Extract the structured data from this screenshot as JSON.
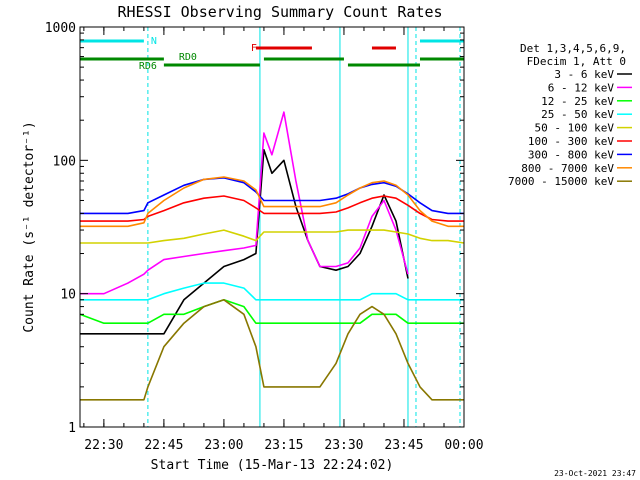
{
  "chart_data": {
    "type": "line",
    "title": "RHESSI Observing Summary Count Rates",
    "xlabel": "Start Time (15-Mar-13 22:24:02)",
    "ylabel": "Count Rate (s⁻¹ detector⁻¹)",
    "y_scale": "log",
    "ylim": [
      1,
      1000
    ],
    "xlim": [
      "22:24:02",
      "00:00:00"
    ],
    "x_ticks": [
      "22:30",
      "22:45",
      "23:00",
      "23:15",
      "23:30",
      "23:45",
      "00:00"
    ],
    "y_ticks": [
      "1",
      "10",
      "100",
      "1000"
    ],
    "timestamp": "23-Oct-2021 23:47",
    "legend": {
      "placement": "right",
      "header": [
        "Det 1,3,4,5,6,9,",
        "FDecim 1, Att 0"
      ]
    },
    "flags": [
      {
        "label": "N",
        "color": "#00e5e5",
        "segments": [
          [
            "22:24",
            "22:40"
          ],
          [
            "23:49",
            "00:00"
          ]
        ]
      },
      {
        "label": "F",
        "color": "#e00000",
        "segments": [
          [
            "23:08",
            "23:22"
          ],
          [
            "23:37",
            "23:43"
          ]
        ]
      },
      {
        "label": "RD0",
        "color": "#008800",
        "segments": [
          [
            "22:24",
            "22:45"
          ],
          [
            "23:10",
            "23:30"
          ],
          [
            "23:49",
            "00:00"
          ]
        ]
      },
      {
        "label": "RD6",
        "color": "#008800",
        "segments": [
          [
            "22:45",
            "23:09"
          ],
          [
            "23:31",
            "23:49"
          ]
        ]
      }
    ],
    "markers": {
      "solid": [
        "23:09",
        "23:29",
        "23:46"
      ],
      "dashed": [
        "22:41",
        "23:48",
        "23:59"
      ]
    },
    "x": [
      "22:24",
      "22:30",
      "22:36",
      "22:40",
      "22:41",
      "22:45",
      "22:50",
      "22:55",
      "23:00",
      "23:05",
      "23:08",
      "23:10",
      "23:12",
      "23:15",
      "23:18",
      "23:21",
      "23:24",
      "23:28",
      "23:31",
      "23:34",
      "23:37",
      "23:40",
      "23:43",
      "23:46",
      "23:49",
      "23:52",
      "23:56",
      "00:00"
    ],
    "series": [
      {
        "name": "3 - 6 keV",
        "color": "#000000",
        "values": [
          5,
          5,
          5,
          5,
          5,
          5,
          9,
          12,
          16,
          18,
          20,
          120,
          80,
          100,
          45,
          25,
          16,
          15,
          16,
          20,
          32,
          55,
          35,
          13,
          null,
          null,
          null,
          null
        ]
      },
      {
        "name": "6 - 12 keV",
        "color": "#ff00ff",
        "values": [
          10,
          10,
          12,
          14,
          15,
          18,
          19,
          20,
          21,
          22,
          23,
          160,
          110,
          230,
          70,
          25,
          16,
          16,
          17,
          22,
          38,
          50,
          30,
          14,
          null,
          null,
          null,
          null
        ]
      },
      {
        "name": "12 - 25 keV",
        "color": "#00ff00",
        "values": [
          7,
          6,
          6,
          6,
          6,
          7,
          7,
          8,
          9,
          8,
          6,
          6,
          6,
          6,
          6,
          6,
          6,
          6,
          6,
          6,
          7,
          7,
          7,
          6,
          6,
          6,
          6,
          6
        ]
      },
      {
        "name": "25 - 50 keV",
        "color": "#00ffff",
        "values": [
          9,
          9,
          9,
          9,
          9,
          10,
          11,
          12,
          12,
          11,
          9,
          9,
          9,
          9,
          9,
          9,
          9,
          9,
          9,
          9,
          10,
          10,
          10,
          9,
          9,
          9,
          9,
          9
        ]
      },
      {
        "name": "50 - 100 keV",
        "color": "#d2d200",
        "values": [
          24,
          24,
          24,
          24,
          24,
          25,
          26,
          28,
          30,
          27,
          25,
          29,
          29,
          29,
          29,
          29,
          29,
          29,
          30,
          30,
          30,
          30,
          29,
          28,
          26,
          25,
          25,
          24
        ]
      },
      {
        "name": "100 - 300 keV",
        "color": "#ff0000",
        "values": [
          35,
          35,
          35,
          36,
          38,
          42,
          48,
          52,
          54,
          50,
          44,
          40,
          40,
          40,
          40,
          40,
          40,
          41,
          44,
          48,
          52,
          54,
          52,
          46,
          40,
          36,
          35,
          35
        ]
      },
      {
        "name": "300 - 800 keV",
        "color": "#0000ff",
        "values": [
          40,
          40,
          40,
          42,
          48,
          55,
          65,
          72,
          74,
          68,
          58,
          50,
          50,
          50,
          50,
          50,
          50,
          52,
          56,
          62,
          66,
          68,
          64,
          56,
          48,
          42,
          40,
          40
        ]
      },
      {
        "name": "800 - 7000 keV",
        "color": "#ff8800",
        "values": [
          32,
          32,
          32,
          34,
          40,
          50,
          62,
          72,
          75,
          70,
          60,
          45,
          45,
          45,
          45,
          45,
          45,
          48,
          55,
          62,
          68,
          70,
          65,
          55,
          42,
          35,
          32,
          32
        ]
      },
      {
        "name": "7000 - 15000 keV",
        "color": "#887700",
        "values": [
          1.6,
          1.6,
          1.6,
          1.6,
          2,
          4,
          6,
          8,
          9,
          7,
          4,
          2,
          2,
          2,
          2,
          2,
          2,
          3,
          5,
          7,
          8,
          7,
          5,
          3,
          2,
          1.6,
          1.6,
          1.6
        ]
      }
    ]
  }
}
